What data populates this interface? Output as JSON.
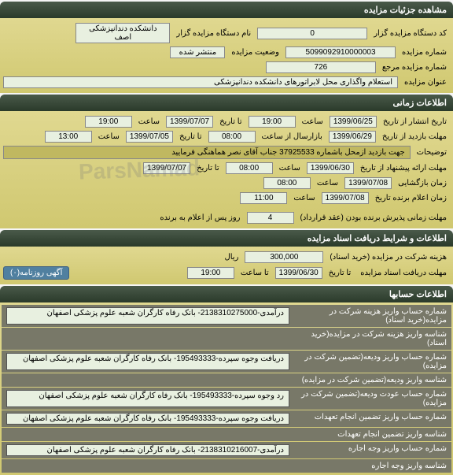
{
  "watermark": "ParsNamad",
  "sections": {
    "details": {
      "title": "مشاهده جزئیات مزایده",
      "org_code_label": "کد دستگاه مزایده گزار",
      "org_code": "0",
      "org_name_label": "نام دستگاه مزایده گزار",
      "org_name": "دانشکده دندانپزشکی اصف",
      "auction_num_label": "شماره مزایده",
      "auction_num": "5099092910000003",
      "status_label": "وضعیت مزایده",
      "status": "منتشر شده",
      "ref_num_label": "شماره مزایده مرجع",
      "ref_num": "726",
      "subject_label": "عنوان مزایده",
      "subject": "استعلام واگذاری محل لابراتورهای دانشکده دندانپزشکی"
    },
    "time": {
      "title": "اطلاعات زمانی",
      "publish_label": "تاریخ انتشار  از تاریخ",
      "publish_from": "1399/06/25",
      "to_label": "تا تاریخ",
      "publish_to": "1399/07/07",
      "time_label": "ساعت",
      "publish_time_from": "19:00",
      "publish_time_to": "19:00",
      "visit_label": "مهلت بازدید  از تاریخ",
      "visit_from": "1399/06/29",
      "visit_to": "1399/07/05",
      "visit_time_from": "08:00",
      "visit_time_to": "13:00",
      "resend_label": "بازارسال از ساعت",
      "note_label": "توضیحات",
      "note": "جهت بازدید ازمحل باشماره 37925533 جناب آقای نصر هماهنگی فرمایید",
      "offer_label": "مهلت ارائه پیشنهاد  از تاریخ",
      "offer_from": "1399/06/30",
      "offer_to": "1399/07/07",
      "offer_time_from": "08:00",
      "open_label": "زمان بازگشایی",
      "open_date": "1399/07/08",
      "open_time": "08:00",
      "announce_label": "زمان اعلام برنده  تاریخ",
      "announce_date": "1399/07/08",
      "announce_time": "11:00",
      "winner_deadline_label": "مهلت زمانی پذیرش برنده بودن (عقد قرارداد)",
      "winner_days": "4",
      "winner_suffix": "روز پس از اعلام به برنده"
    },
    "docs": {
      "title": "اطلاعات و شرایط دریافت اسناد مزایده",
      "fee_label": "هزینه شرکت در مزایده (خرید اسناد)",
      "fee": "300,000",
      "currency": "ریال",
      "deadline_label": "مهلت دریافت اسناد مزایده",
      "deadline_to_label": "تا تاریخ",
      "deadline_date": "1399/06/30",
      "deadline_time_label": "تا ساعت",
      "deadline_time": "19:00",
      "ad_btn": "آگهی روزنامه(۰)"
    },
    "accounts": {
      "title": "اطلاعات حسابها",
      "rows": [
        {
          "label": "شماره حساب واریز هزینه شرکت در مزایده(خرید اسناد)",
          "value": "درآمدی-2138310275000- بانک رفاه کارگران شعبه علوم پزشکی اصفهان"
        },
        {
          "label": "شناسه واریز هزینه شرکت در مزایده(خرید اسناد)",
          "value": ""
        },
        {
          "label": "شماره حساب واریز ودیعه(تضمین شرکت در مزایده)",
          "value": "دریافت وجوه سپرده-195493333- بانک رفاه کارگران شعبه علوم پزشکی اصفهان"
        },
        {
          "label": "شناسه واریز ودیعه(تضمین شرکت در مزایده)",
          "value": ""
        },
        {
          "label": "شماره حساب عودت ودیعه(تضمین شرکت در مزایده)",
          "value": "رد وجوه سپرده-195493333- بانک رفاه کارگران شعبه علوم پزشکی اصفهان"
        },
        {
          "label": "شماره حساب واریز تضمین انجام تعهدات",
          "value": "دریافت وجوه سپرده-195493333- بانک رفاه کارگران شعبه علوم پزشکی اصفهان"
        },
        {
          "label": "شناسه واریز تضمین انجام تعهدات",
          "value": ""
        },
        {
          "label": "شماره حساب واریز وجه اجاره",
          "value": "درآمدی-2138310216007- بانک رفاه کارگران شعبه علوم پزشکی اصفهان"
        },
        {
          "label": "شناسه واریز وجه اجاره",
          "value": ""
        }
      ]
    }
  }
}
